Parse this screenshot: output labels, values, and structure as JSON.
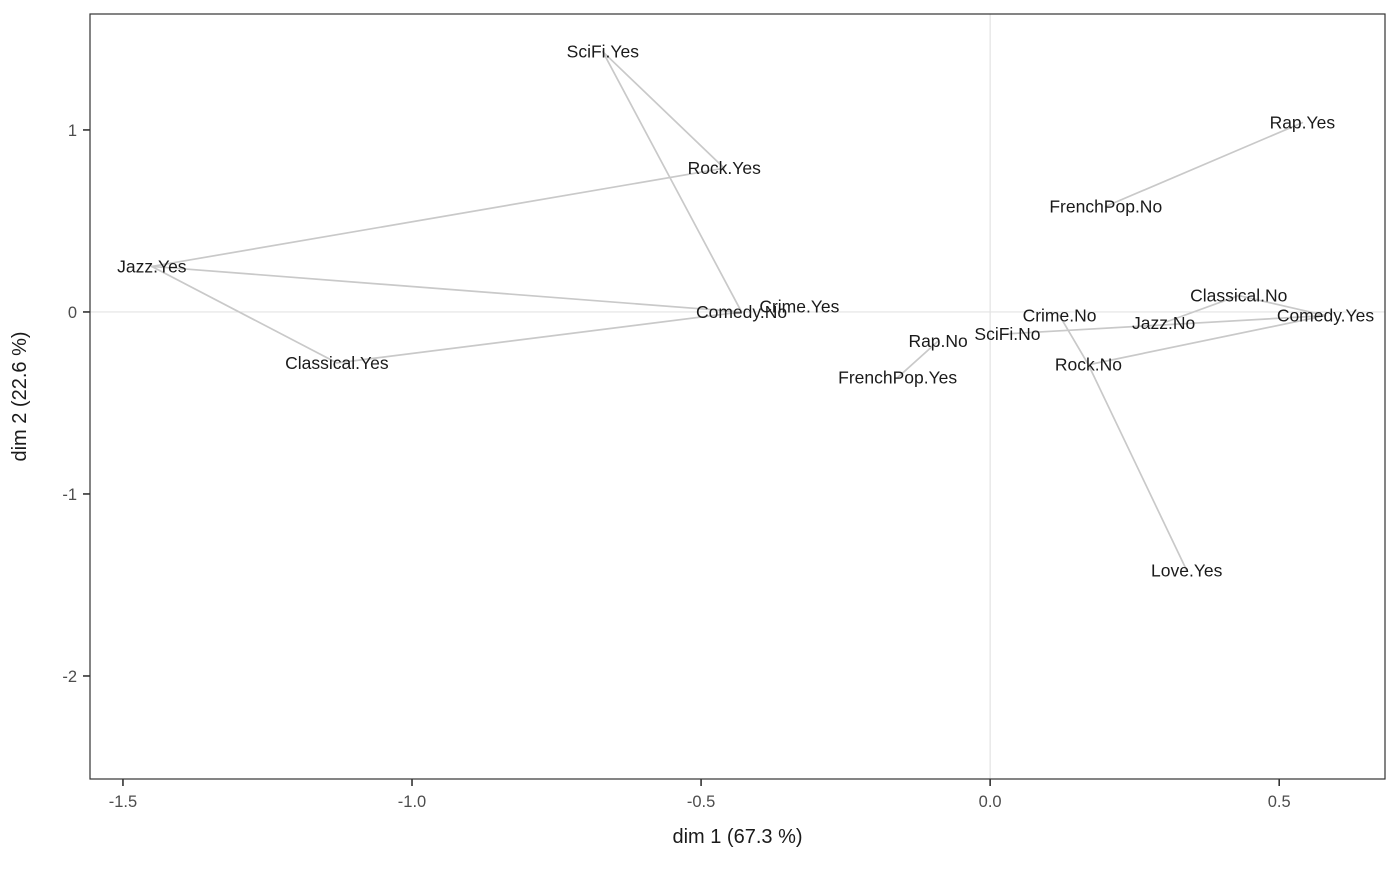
{
  "chart_data": {
    "type": "scatter",
    "subtype": "mca-category-biplot",
    "title": "",
    "xlabel": "dim 1 (67.3 %)",
    "ylabel": "dim 2 (22.6 %)",
    "xlim": [
      -1.557,
      0.683
    ],
    "ylim": [
      -2.566,
      1.637
    ],
    "grid": "zero-lines-only",
    "legend": "none",
    "x_ticks": [
      {
        "label": "-1.5",
        "value": -1.5
      },
      {
        "label": "-1.0",
        "value": -1.0
      },
      {
        "label": "-0.5",
        "value": -0.5
      },
      {
        "label": "0.0",
        "value": 0.0
      },
      {
        "label": "0.5",
        "value": 0.5
      }
    ],
    "y_ticks": [
      {
        "label": "1",
        "value": 1
      },
      {
        "label": "0",
        "value": 0
      },
      {
        "label": "-1",
        "value": -1
      },
      {
        "label": "-2",
        "value": -2
      }
    ],
    "points": [
      {
        "label": "SciFi.Yes",
        "x": -0.67,
        "y": 1.43
      },
      {
        "label": "Rock.Yes",
        "x": -0.46,
        "y": 0.79
      },
      {
        "label": "Jazz.Yes",
        "x": -1.45,
        "y": 0.25
      },
      {
        "label": "Classical.Yes",
        "x": -1.13,
        "y": -0.28
      },
      {
        "label": "Comedy.No",
        "x": -0.43,
        "y": 0.0
      },
      {
        "label": "Crime.Yes",
        "x": -0.33,
        "y": 0.03
      },
      {
        "label": "Rap.No",
        "x": -0.09,
        "y": -0.16
      },
      {
        "label": "FrenchPop.Yes",
        "x": -0.16,
        "y": -0.36
      },
      {
        "label": "SciFi.No",
        "x": 0.03,
        "y": -0.12
      },
      {
        "label": "Crime.No",
        "x": 0.12,
        "y": -0.02
      },
      {
        "label": "Jazz.No",
        "x": 0.3,
        "y": -0.06
      },
      {
        "label": "Classical.No",
        "x": 0.43,
        "y": 0.09
      },
      {
        "label": "Comedy.Yes",
        "x": 0.58,
        "y": -0.02
      },
      {
        "label": "Rock.No",
        "x": 0.17,
        "y": -0.29
      },
      {
        "label": "FrenchPop.No",
        "x": 0.2,
        "y": 0.58
      },
      {
        "label": "Rap.Yes",
        "x": 0.54,
        "y": 1.04
      },
      {
        "label": "Love.Yes",
        "x": 0.34,
        "y": -1.42
      }
    ],
    "edges": [
      [
        "SciFi.Yes",
        "Rock.Yes"
      ],
      [
        "SciFi.Yes",
        "Comedy.No"
      ],
      [
        "Jazz.Yes",
        "Rock.Yes"
      ],
      [
        "Jazz.Yes",
        "Comedy.No"
      ],
      [
        "Jazz.Yes",
        "Classical.Yes"
      ],
      [
        "Classical.Yes",
        "Comedy.No"
      ],
      [
        "Rap.Yes",
        "FrenchPop.No"
      ],
      [
        "Rap.No",
        "FrenchPop.Yes"
      ],
      [
        "Crime.No",
        "Rock.No"
      ],
      [
        "Rock.No",
        "Love.Yes"
      ],
      [
        "Rock.No",
        "Comedy.Yes"
      ],
      [
        "SciFi.No",
        "Comedy.Yes"
      ],
      [
        "Classical.No",
        "Jazz.No"
      ],
      [
        "Classical.No",
        "Comedy.Yes"
      ]
    ],
    "style": {
      "edge_color": "#c9c9c9",
      "zero_line_color": "#e3e3e3",
      "panel_border_color": "#333333",
      "tick_color": "#333333",
      "tick_label_color": "#4d4d4d",
      "label_color": "#1a1a1a",
      "background": "#ffffff"
    }
  }
}
